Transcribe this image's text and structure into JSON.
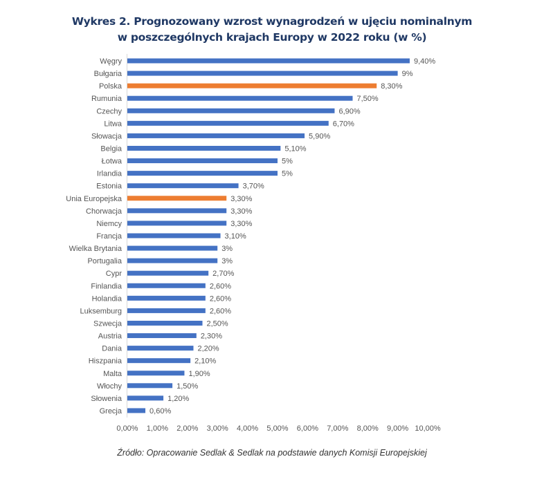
{
  "chart_data": {
    "type": "bar",
    "orientation": "horizontal",
    "title": "Wykres 2. Prognozowany wzrost wynagrodzeń w ujęciu nominalnym",
    "subtitle": "w poszczególnych krajach Europy w 2022 roku (w %)",
    "categories": [
      "Węgry",
      "Bułgaria",
      "Polska",
      "Rumunia",
      "Czechy",
      "Litwa",
      "Słowacja",
      "Belgia",
      "Łotwa",
      "Irlandia",
      "Estonia",
      "Unia Europejska",
      "Chorwacja",
      "Niemcy",
      "Francja",
      "Wielka Brytania",
      "Portugalia",
      "Cypr",
      "Finlandia",
      "Holandia",
      "Luksemburg",
      "Szwecja",
      "Austria",
      "Dania",
      "Hiszpania",
      "Malta",
      "Włochy",
      "Słowenia",
      "Grecja"
    ],
    "values": [
      9.4,
      9,
      8.3,
      7.5,
      6.9,
      6.7,
      5.9,
      5.1,
      5,
      5,
      3.7,
      3.3,
      3.3,
      3.3,
      3.1,
      3,
      3,
      2.7,
      2.6,
      2.6,
      2.6,
      2.5,
      2.3,
      2.2,
      2.1,
      1.9,
      1.5,
      1.2,
      0.6
    ],
    "data_labels": [
      "9,40%",
      "9%",
      "8,30%",
      "7,50%",
      "6,90%",
      "6,70%",
      "5,90%",
      "5,10%",
      "5%",
      "5%",
      "3,70%",
      "3,30%",
      "3,30%",
      "3,30%",
      "3,10%",
      "3%",
      "3%",
      "2,70%",
      "2,60%",
      "2,60%",
      "2,60%",
      "2,50%",
      "2,30%",
      "2,20%",
      "2,10%",
      "1,90%",
      "1,50%",
      "1,20%",
      "0,60%"
    ],
    "highlighted": [
      "Polska",
      "Unia Europejska"
    ],
    "x_ticks": [
      "0,00%",
      "1,00%",
      "2,00%",
      "3,00%",
      "4,00%",
      "5,00%",
      "6,00%",
      "7,00%",
      "8,00%",
      "9,00%",
      "10,00%"
    ],
    "xlim": [
      0,
      10
    ],
    "grid": false,
    "legend": "none",
    "colors": {
      "default": "#4472c4",
      "highlight": "#ed7d31",
      "title": "#1f3864"
    }
  },
  "source": "Źródło: Opracowanie Sedlak & Sedlak na podstawie danych Komisji Europejskiej"
}
